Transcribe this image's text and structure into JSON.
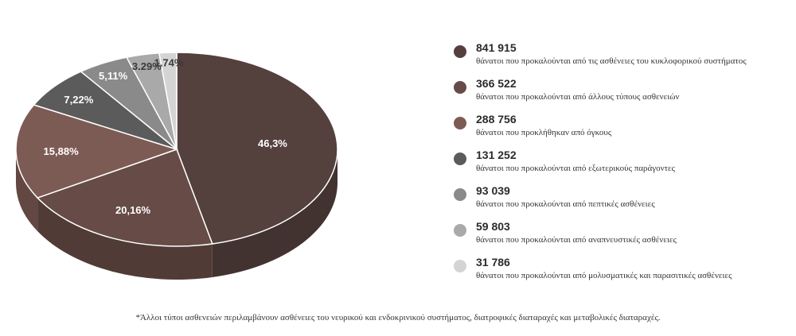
{
  "chart_data": {
    "type": "pie",
    "title": "",
    "slices": [
      {
        "label": "46,3%",
        "value": 46.3,
        "color": "#54403d"
      },
      {
        "label": "20,16%",
        "value": 20.16,
        "color": "#674b47"
      },
      {
        "label": "15,88%",
        "value": 15.88,
        "color": "#7d5b55"
      },
      {
        "label": "7,22%",
        "value": 7.22,
        "color": "#5b5b5b"
      },
      {
        "label": "5,11%",
        "value": 5.11,
        "color": "#8a8a8a"
      },
      {
        "label": "3.29%",
        "value": 3.29,
        "color": "#a9a9a9"
      },
      {
        "label": "1.74%",
        "value": 1.74,
        "color": "#d4d4d4"
      }
    ],
    "legend": [
      {
        "value": "841 915",
        "description": "θάνατοι που προκαλούνται από τις ασθένειες του κυκλοφορικού συστήματος",
        "color": "#54403d"
      },
      {
        "value": "366 522",
        "description": "θάνατοι που προκαλούνται από άλλους τύπους ασθενειών",
        "color": "#674b47"
      },
      {
        "value": "288 756",
        "description": "θάνατοι που προκλήθηκαν από όγκους",
        "color": "#7d5b55"
      },
      {
        "value": "131 252",
        "description": "θάνατοι που προκαλούνται από εξωτερικούς παράγοντες",
        "color": "#5b5b5b"
      },
      {
        "value": "93 039",
        "description": "θάνατοι που προκαλούνται από πεπτικές ασθένειες",
        "color": "#8a8a8a"
      },
      {
        "value": "59 803",
        "description": "θάνατοι που προκαλούνται από αναπνευστικές ασθένειες",
        "color": "#a9a9a9"
      },
      {
        "value": "31 786",
        "description": "θάνατοι που προκαλούνται από μολυσματικές και παρασιτικές ασθένειες",
        "color": "#d4d4d4"
      }
    ]
  },
  "footnote": "*Άλλοι τύποι ασθενειών περιλαμβάνουν ασθένειες του νευρικού και ενδοκρινικού συστήματος, διατροφικές διαταραχές και μεταβολικές διαταραχές."
}
